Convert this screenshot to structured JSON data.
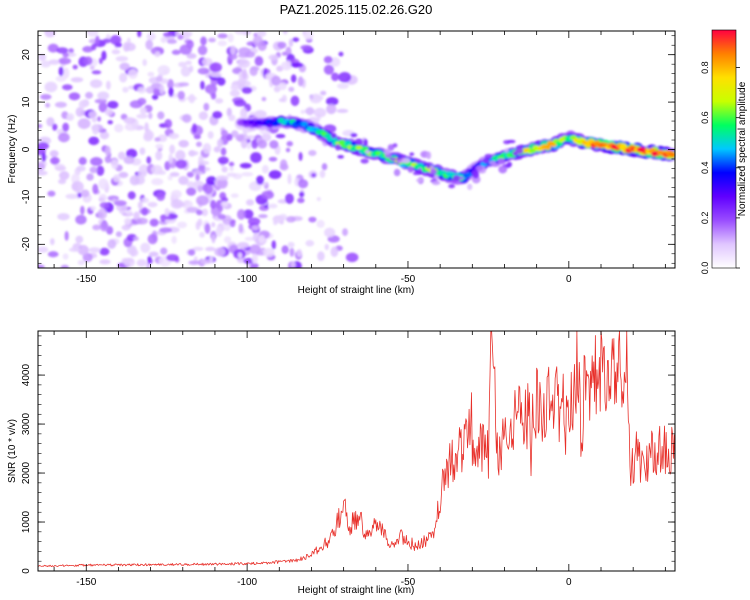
{
  "title": "PAZ1.2025.115.02.26.G20",
  "colors": {
    "snr_line": "#e8302a",
    "axis": "#000000"
  },
  "chart_data": [
    {
      "type": "heatmap",
      "xlabel": "Height of straight line (km)",
      "ylabel": "Frequency (Hz)",
      "xlim": [
        -165,
        33
      ],
      "ylim": [
        -25,
        25
      ],
      "x_ticks": [
        -150,
        -100,
        -50,
        0
      ],
      "y_ticks": [
        -20,
        -10,
        0,
        10,
        20
      ],
      "colorbar": {
        "label": "Normalized spectral amplitude",
        "range": [
          0,
          0.95
        ],
        "ticks": [
          "0.0",
          "0.2",
          "0.4",
          "0.6",
          "0.8"
        ],
        "tick_values": [
          0.0,
          0.2,
          0.4,
          0.6,
          0.8
        ],
        "colormap": [
          "#ffffff",
          "#e0c6ff",
          "#9a4dff",
          "#6000ff",
          "#0000ff",
          "#00c8ff",
          "#00ff60",
          "#c8ff00",
          "#ffe000",
          "#ff8000",
          "#ff0040"
        ]
      },
      "ridge": {
        "x": [
          -102,
          -95,
          -88,
          -82,
          -77,
          -72,
          -67,
          -62,
          -57,
          -52,
          -47,
          -42,
          -37,
          -33,
          -29,
          -25,
          -20,
          -15,
          -10,
          -5,
          -2,
          0,
          5,
          10,
          15,
          20,
          25,
          33
        ],
        "frequency": [
          5.5,
          5.5,
          6,
          5,
          3.5,
          1.5,
          0.5,
          -0.5,
          -1.5,
          -2.5,
          -3.5,
          -4.5,
          -5.5,
          -6,
          -4,
          -2.5,
          -1.5,
          -0.5,
          0.3,
          1,
          2,
          2.5,
          1.5,
          1,
          0.5,
          0,
          -0.5,
          -1
        ],
        "amplitude": [
          0.22,
          0.3,
          0.5,
          0.42,
          0.52,
          0.58,
          0.62,
          0.6,
          0.55,
          0.66,
          0.58,
          0.62,
          0.55,
          0.52,
          0.32,
          0.45,
          0.58,
          0.68,
          0.7,
          0.72,
          0.62,
          0.55,
          0.82,
          0.85,
          0.88,
          0.92,
          0.9,
          0.82
        ]
      },
      "noise_region_x": [
        -165,
        -78
      ]
    },
    {
      "type": "line",
      "xlabel": "Height of straight line (km)",
      "ylabel": "SNR (10 * v/v)",
      "xlim": [
        -165,
        33
      ],
      "ylim": [
        0,
        4900
      ],
      "x_ticks": [
        -150,
        -100,
        -50,
        0
      ],
      "y_ticks": [
        0,
        1000,
        2000,
        3000,
        4000
      ],
      "series": [
        {
          "x": [
            -165,
            -150,
            -130,
            -110,
            -95,
            -85,
            -80,
            -75,
            -72,
            -70,
            -68,
            -65,
            -63,
            -60,
            -57,
            -55,
            -52,
            -50,
            -47,
            -45,
            -42,
            -40,
            -38,
            -35,
            -33,
            -31,
            -29,
            -27,
            -25,
            -24,
            -22,
            -20,
            -17,
            -14,
            -12,
            -10,
            -8,
            -5,
            -3,
            -1,
            0,
            3,
            6,
            10,
            14,
            17,
            18,
            19,
            20,
            25,
            30,
            33
          ],
          "values": [
            100,
            120,
            130,
            140,
            160,
            210,
            330,
            600,
            1000,
            1300,
            900,
            1200,
            700,
            1000,
            700,
            500,
            700,
            600,
            500,
            600,
            700,
            1500,
            2100,
            2300,
            2500,
            2800,
            2600,
            2500,
            2400,
            4800,
            2100,
            2700,
            3200,
            3300,
            3100,
            3400,
            3300,
            3500,
            3400,
            3600,
            3500,
            3600,
            3800,
            4100,
            4100,
            4300,
            4600,
            2000,
            2200,
            2350,
            2450,
            2500
          ]
        }
      ]
    }
  ]
}
